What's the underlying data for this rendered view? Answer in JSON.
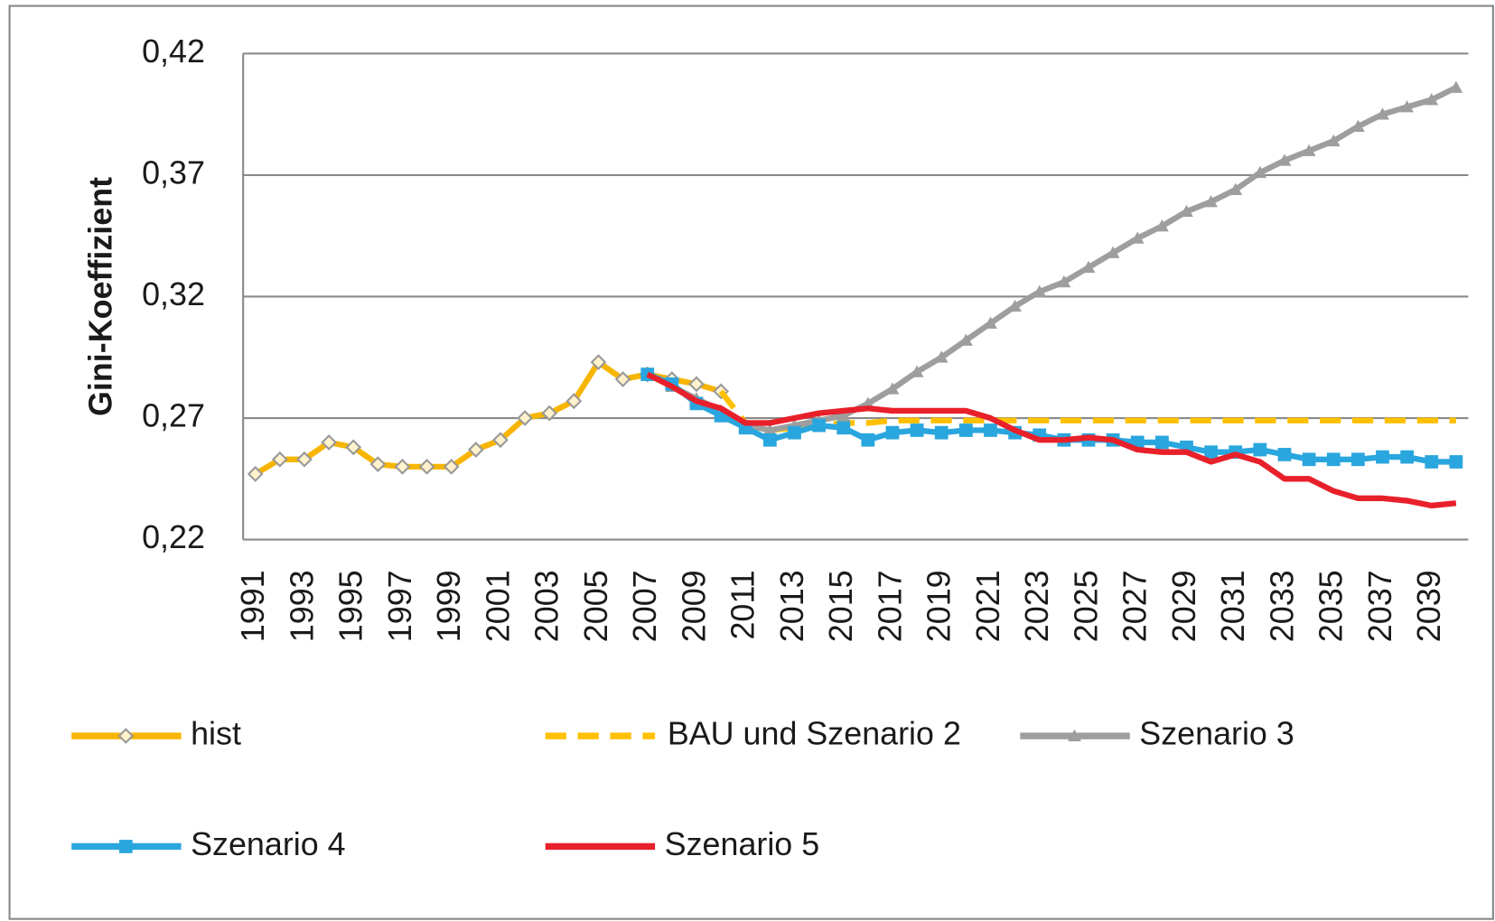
{
  "chart_data": {
    "type": "line",
    "y_label": "Gini-Koeffizient",
    "categories": [
      "1991",
      null,
      "1993",
      null,
      "1995",
      null,
      "1997",
      null,
      "1999",
      null,
      "2001",
      null,
      "2003",
      null,
      "2005",
      null,
      "2007",
      null,
      "2009",
      null,
      "2011",
      null,
      "2013",
      null,
      "2015",
      null,
      "2017",
      null,
      "2019",
      null,
      "2021",
      null,
      "2023",
      null,
      "2025",
      null,
      "2027",
      null,
      "2029",
      null,
      "2031",
      null,
      "2033",
      null,
      "2035",
      null,
      "2037",
      null,
      "2039",
      null
    ],
    "ylim": [
      0.22,
      0.42
    ],
    "yticks": [
      {
        "value": 0.22,
        "label": "0,22"
      },
      {
        "value": 0.27,
        "label": "0,27"
      },
      {
        "value": 0.32,
        "label": "0,32"
      },
      {
        "value": 0.37,
        "label": "0,37"
      },
      {
        "value": 0.42,
        "label": "0,42"
      }
    ],
    "grid": true,
    "series": [
      {
        "name": "hist",
        "color": "#f7b500",
        "marker": "diamond",
        "values": [
          0.247,
          0.253,
          0.253,
          0.26,
          0.258,
          0.251,
          0.25,
          0.25,
          0.25,
          0.257,
          0.261,
          0.27,
          0.272,
          0.277,
          0.293,
          0.286,
          0.288,
          0.286,
          0.284,
          0.281,
          null,
          null,
          null,
          null,
          null,
          null,
          null,
          null,
          null,
          null,
          null,
          null,
          null,
          null,
          null,
          null,
          null,
          null,
          null,
          null,
          null,
          null,
          null,
          null,
          null,
          null,
          null,
          null,
          null,
          null
        ]
      },
      {
        "name": "BAU und Szenario 2",
        "color": "#ffc000",
        "dashed": true,
        "values": [
          null,
          null,
          null,
          null,
          null,
          null,
          null,
          null,
          null,
          null,
          null,
          null,
          null,
          null,
          null,
          null,
          null,
          null,
          null,
          0.281,
          0.268,
          0.265,
          0.266,
          0.267,
          0.268,
          0.268,
          0.269,
          0.269,
          0.269,
          0.269,
          0.269,
          0.269,
          0.269,
          0.269,
          0.269,
          0.269,
          0.269,
          0.269,
          0.269,
          0.269,
          0.269,
          0.269,
          0.269,
          0.269,
          0.269,
          0.269,
          0.269,
          0.269,
          0.269,
          0.269
        ]
      },
      {
        "name": "Szenario 3",
        "color": "#9e9e9e",
        "marker": "triangle",
        "values": [
          null,
          null,
          null,
          null,
          null,
          null,
          null,
          null,
          null,
          null,
          null,
          null,
          null,
          null,
          null,
          null,
          0.288,
          0.283,
          0.278,
          0.273,
          0.267,
          0.265,
          0.267,
          0.269,
          0.271,
          0.276,
          0.282,
          0.289,
          0.295,
          0.302,
          0.309,
          0.316,
          0.322,
          0.326,
          0.332,
          0.338,
          0.344,
          0.349,
          0.355,
          0.359,
          0.364,
          0.371,
          0.376,
          0.38,
          0.384,
          0.39,
          0.395,
          0.398,
          0.401,
          0.406
        ]
      },
      {
        "name": "Szenario 4",
        "color": "#2aa6de",
        "marker": "square",
        "values": [
          null,
          null,
          null,
          null,
          null,
          null,
          null,
          null,
          null,
          null,
          null,
          null,
          null,
          null,
          null,
          null,
          0.288,
          0.284,
          0.276,
          0.271,
          0.266,
          0.261,
          0.264,
          0.267,
          0.266,
          0.261,
          0.264,
          0.265,
          0.264,
          0.265,
          0.265,
          0.264,
          0.263,
          0.261,
          0.261,
          0.261,
          0.26,
          0.26,
          0.258,
          0.256,
          0.256,
          0.257,
          0.255,
          0.253,
          0.253,
          0.253,
          0.254,
          0.254,
          0.252,
          0.252
        ]
      },
      {
        "name": "Szenario 5",
        "color": "#e8202a",
        "values": [
          null,
          null,
          null,
          null,
          null,
          null,
          null,
          null,
          null,
          null,
          null,
          null,
          null,
          null,
          null,
          null,
          0.288,
          0.283,
          0.277,
          0.274,
          0.268,
          0.268,
          0.27,
          0.272,
          0.273,
          0.274,
          0.273,
          0.273,
          0.273,
          0.273,
          0.27,
          0.265,
          0.261,
          0.261,
          0.262,
          0.261,
          0.257,
          0.256,
          0.256,
          0.252,
          0.255,
          0.252,
          0.245,
          0.245,
          0.24,
          0.237,
          0.237,
          0.236,
          0.234,
          0.235
        ]
      }
    ]
  }
}
